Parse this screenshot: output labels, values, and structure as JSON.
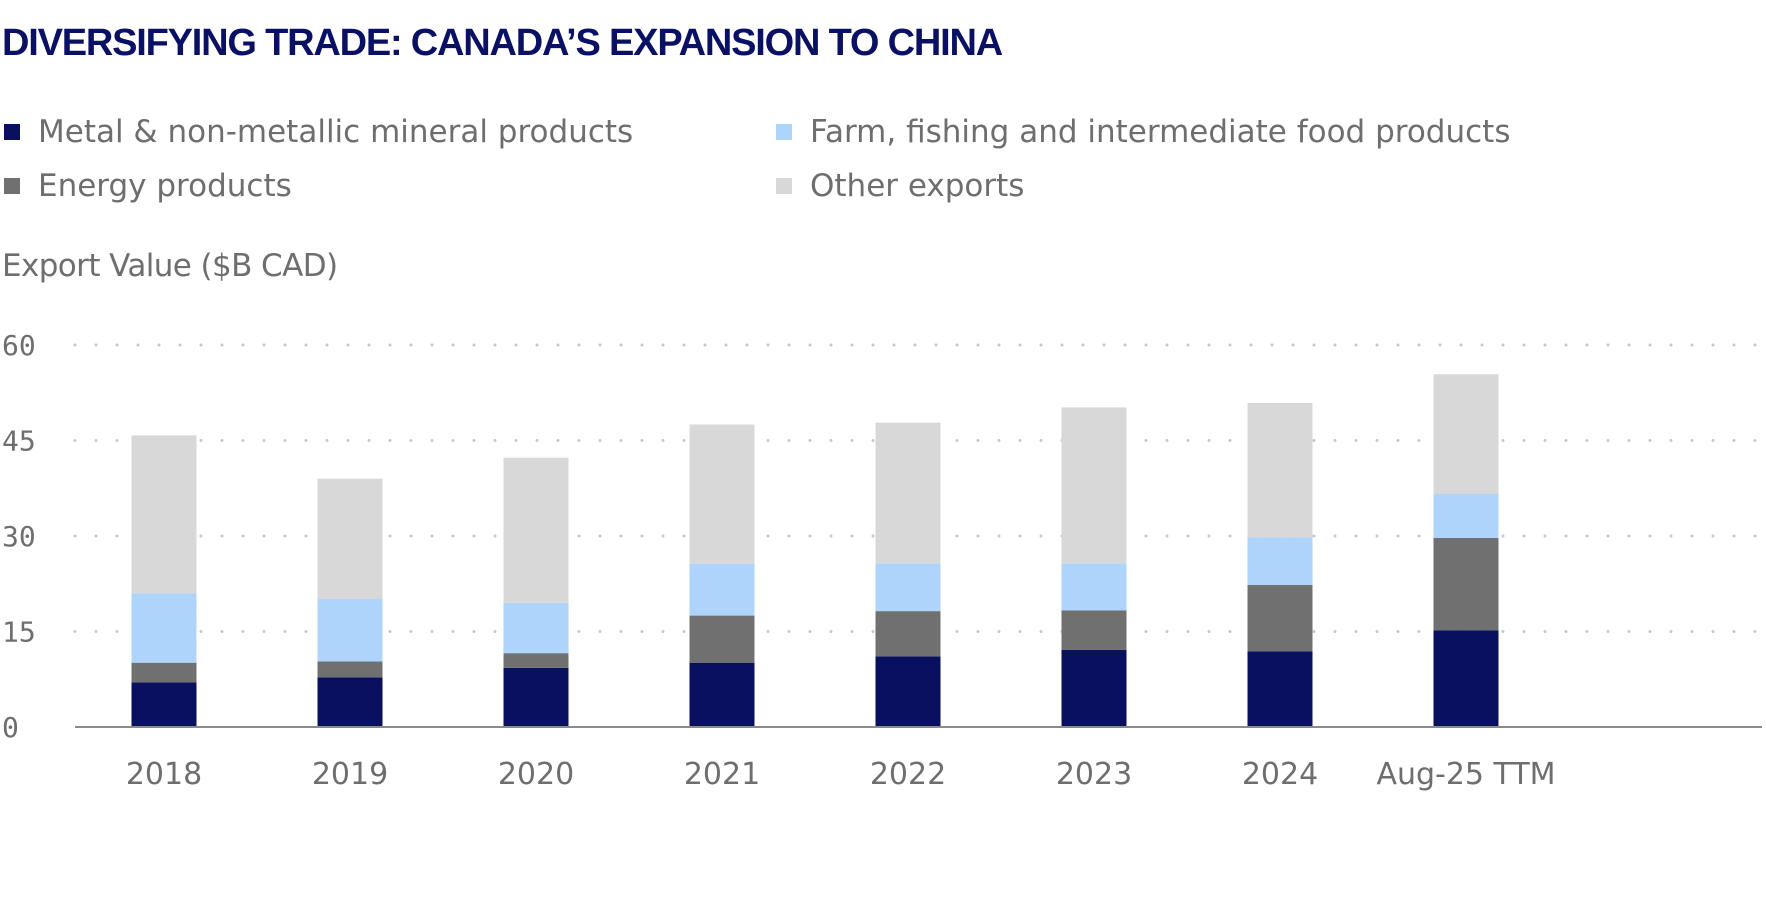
{
  "title": "DIVERSIFYING TRADE: CANADA’S EXPANSION TO CHINA",
  "colors": {
    "metal": "#0a1060",
    "energy": "#707070",
    "farm": "#aed4fc",
    "other": "#d8d8d8",
    "grid": "#c8c8c8",
    "axis": "#8a8a8a",
    "text": "#6e6e6e",
    "title": "#0a1064"
  },
  "legend": [
    {
      "label": "Metal & non-metallic mineral products",
      "color": "#0a1060"
    },
    {
      "label": "Farm, fishing and intermediate food products",
      "color": "#aed4fc"
    },
    {
      "label": "Energy products",
      "color": "#707070"
    },
    {
      "label": "Other exports",
      "color": "#d8d8d8"
    }
  ],
  "chart_data": {
    "type": "bar",
    "stacked": true,
    "title": "DIVERSIFYING TRADE: CANADA’S EXPANSION TO CHINA",
    "xlabel": "",
    "ylabel": "Export Value ($B CAD)",
    "ylim": [
      0,
      60
    ],
    "yticks": [
      0,
      15,
      30,
      45,
      60
    ],
    "ytick_labels": [
      "0",
      "15",
      "30",
      "45",
      "60"
    ],
    "grid": "horizontal-dotted",
    "legend_position": "top",
    "categories": [
      "2018",
      "2019",
      "2020",
      "2021",
      "2022",
      "2023",
      "2024",
      "Aug-25 TTM"
    ],
    "series": [
      {
        "name": "Metal & non-metallic mineral products",
        "color": "#0a1060",
        "values": [
          7.0,
          7.8,
          9.3,
          10.1,
          11.1,
          12.1,
          11.9,
          15.2
        ]
      },
      {
        "name": "Energy products",
        "color": "#707070",
        "values": [
          3.1,
          2.5,
          2.3,
          7.4,
          7.1,
          6.2,
          10.4,
          14.5
        ]
      },
      {
        "name": "Farm, fishing and intermediate food products",
        "color": "#aed4fc",
        "values": [
          10.9,
          9.8,
          7.9,
          8.1,
          7.5,
          7.4,
          7.5,
          6.9
        ]
      },
      {
        "name": "Other exports",
        "color": "#d8d8d8",
        "values": [
          24.8,
          18.9,
          22.8,
          21.9,
          22.1,
          24.5,
          21.1,
          18.8
        ]
      }
    ]
  }
}
